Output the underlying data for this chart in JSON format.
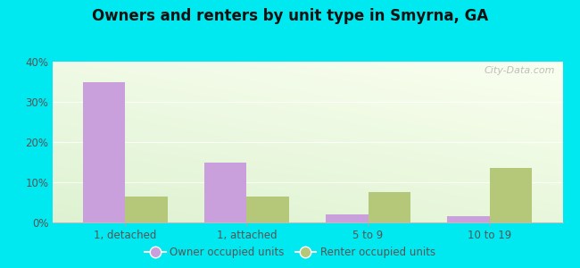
{
  "title": "Owners and renters by unit type in Smyrna, GA",
  "categories": [
    "1, detached",
    "1, attached",
    "5 to 9",
    "10 to 19"
  ],
  "owner_values": [
    35,
    15,
    2,
    1.5
  ],
  "renter_values": [
    6.5,
    6.5,
    7.5,
    13.5
  ],
  "owner_color": "#c9a0dc",
  "renter_color": "#b5c87a",
  "ylim": [
    0,
    40
  ],
  "yticks": [
    0,
    10,
    20,
    30,
    40
  ],
  "ytick_labels": [
    "0%",
    "10%",
    "20%",
    "30%",
    "40%"
  ],
  "bg_topleft": "#dff0d8",
  "bg_topright": "#f0f8e8",
  "bg_bottomleft": "#e8f8d0",
  "bg_bottomright": "#f8fff0",
  "outer_background": "#00e8f0",
  "bar_width": 0.35,
  "legend_owner": "Owner occupied units",
  "legend_renter": "Renter occupied units",
  "watermark": "City-Data.com"
}
